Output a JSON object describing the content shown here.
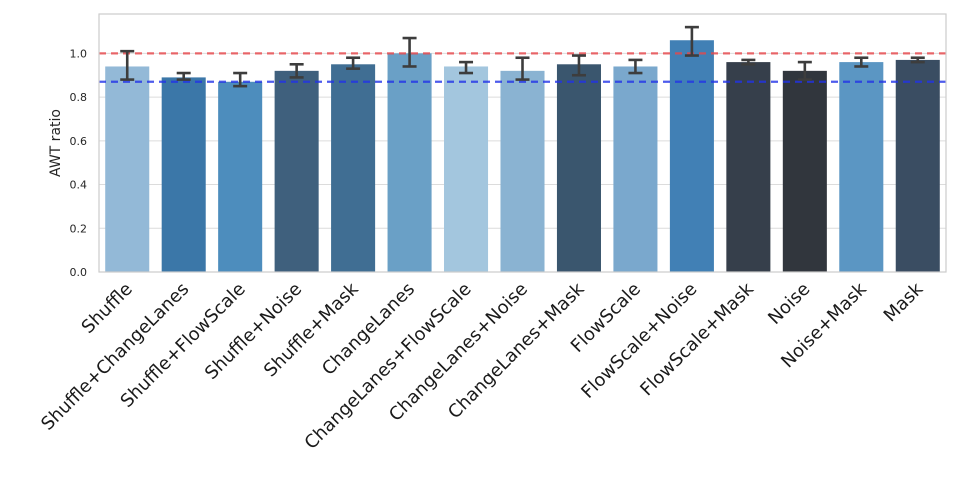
{
  "chart_data": {
    "type": "bar",
    "title": "",
    "xlabel": "",
    "ylabel": "AWT ratio",
    "ylim": [
      0,
      1.18
    ],
    "yticks": [
      0.0,
      0.2,
      0.4,
      0.6,
      0.8,
      1.0
    ],
    "ytick_labels": [
      "0.0",
      "0.2",
      "0.4",
      "0.6",
      "0.8",
      "1.0"
    ],
    "grid": "horizontal",
    "categories": [
      "Shuffle",
      "Shuffle+ChangeLanes",
      "Shuffle+FlowScale",
      "Shuffle+Noise",
      "Shuffle+Mask",
      "ChangeLanes",
      "ChangeLanes+FlowScale",
      "ChangeLanes+Noise",
      "ChangeLanes+Mask",
      "FlowScale",
      "FlowScale+Noise",
      "FlowScale+Mask",
      "Noise",
      "Noise+Mask",
      "Mask"
    ],
    "values": [
      0.94,
      0.89,
      0.87,
      0.92,
      0.95,
      1.0,
      0.94,
      0.92,
      0.95,
      0.94,
      1.06,
      0.96,
      0.92,
      0.96,
      0.97
    ],
    "error_low": [
      0.88,
      0.88,
      0.85,
      0.89,
      0.93,
      0.94,
      0.91,
      0.88,
      0.9,
      0.91,
      0.99,
      0.95,
      0.88,
      0.94,
      0.96
    ],
    "error_high": [
      1.01,
      0.91,
      0.91,
      0.95,
      0.98,
      1.07,
      0.96,
      0.98,
      0.99,
      0.97,
      1.12,
      0.97,
      0.96,
      0.98,
      0.98
    ],
    "bar_colors": [
      "#93b9d7",
      "#3b77a8",
      "#4d8dbd",
      "#3f607d",
      "#406e93",
      "#6aa0c6",
      "#a3c6de",
      "#8ab3d2",
      "#3a566e",
      "#7aa8cd",
      "#4180b5",
      "#363f4b",
      "#31363d",
      "#5b96c3",
      "#3a4d62"
    ],
    "reference_lines": [
      {
        "name": "reference-1.0",
        "value": 1.0,
        "color": "#e8474a",
        "style": "dashed"
      },
      {
        "name": "reference-0.87",
        "value": 0.87,
        "color": "#2233e8",
        "style": "dashed"
      }
    ],
    "label_rotation": -45
  }
}
